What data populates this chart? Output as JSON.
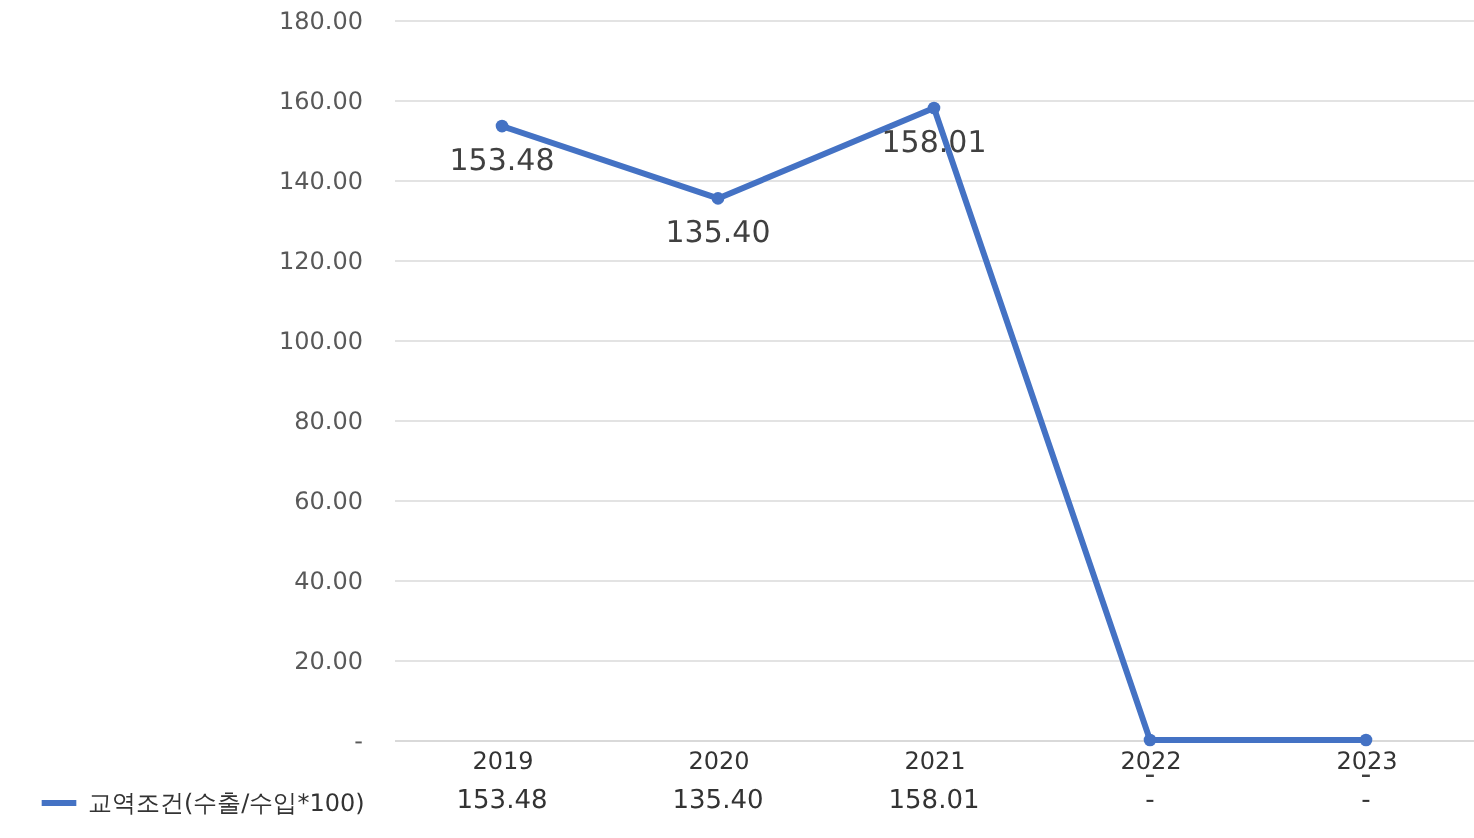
{
  "chart_data": {
    "type": "line",
    "categories": [
      "2019",
      "2020",
      "2021",
      "2022",
      "2023"
    ],
    "series": [
      {
        "name": "교역조건(수출/수입*100)",
        "color": "#4472c4",
        "values": [
          153.48,
          135.4,
          158.01,
          0,
          0
        ],
        "value_labels": [
          "153.48",
          "135.40",
          "158.01",
          "-",
          "-"
        ]
      }
    ],
    "ylim": [
      0,
      180
    ],
    "yticks": [
      {
        "value": 0,
        "label": "-"
      },
      {
        "value": 20,
        "label": "20.00"
      },
      {
        "value": 40,
        "label": "40.00"
      },
      {
        "value": 60,
        "label": "60.00"
      },
      {
        "value": 80,
        "label": "80.00"
      },
      {
        "value": 100,
        "label": "100.00"
      },
      {
        "value": 120,
        "label": "120.00"
      },
      {
        "value": 140,
        "label": "140.00"
      },
      {
        "value": 160,
        "label": "160.00"
      },
      {
        "value": 180,
        "label": "180.00"
      }
    ],
    "grid": "y",
    "legend": "bottom left",
    "marker": "circle",
    "line_style": "solid"
  }
}
